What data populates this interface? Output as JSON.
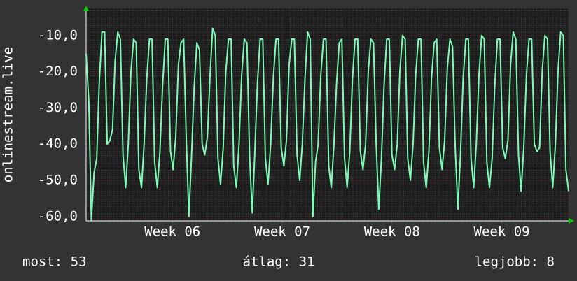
{
  "chart_data": {
    "type": "line",
    "y_label": "onlinestream.live",
    "series": [
      {
        "name": "onlinestream.live",
        "color": "#7dfbb8",
        "values": [
          -15,
          -28,
          -61,
          -48,
          -44,
          -23,
          -9,
          -9,
          -40,
          -39,
          -36,
          -17,
          -9,
          -11,
          -43,
          -52,
          -40,
          -20,
          -11,
          -12,
          -47,
          -52,
          -40,
          -22,
          -11,
          -11,
          -45,
          -52,
          -42,
          -24,
          -11,
          -11,
          -42,
          -47,
          -38,
          -18,
          -12,
          -11,
          -39,
          -60,
          -43,
          -24,
          -12,
          -14,
          -40,
          -43,
          -38,
          -21,
          -8,
          -10,
          -44,
          -51,
          -41,
          -20,
          -11,
          -11,
          -46,
          -52,
          -40,
          -21,
          -11,
          -12,
          -43,
          -59,
          -42,
          -23,
          -11,
          -11,
          -44,
          -51,
          -40,
          -22,
          -11,
          -11,
          -41,
          -46,
          -39,
          -18,
          -11,
          -11,
          -43,
          -50,
          -40,
          -22,
          -9,
          -11,
          -60,
          -45,
          -40,
          -21,
          -11,
          -11,
          -46,
          -52,
          -40,
          -23,
          -12,
          -11,
          -44,
          -52,
          -42,
          -22,
          -11,
          -11,
          -42,
          -47,
          -40,
          -20,
          -11,
          -12,
          -40,
          -58,
          -44,
          -24,
          -11,
          -11,
          -43,
          -47,
          -40,
          -20,
          -10,
          -11,
          -44,
          -50,
          -40,
          -21,
          -11,
          -11,
          -45,
          -52,
          -42,
          -22,
          -12,
          -11,
          -41,
          -47,
          -39,
          -19,
          -11,
          -13,
          -41,
          -58,
          -43,
          -22,
          -11,
          -11,
          -44,
          -52,
          -40,
          -21,
          -10,
          -11,
          -45,
          -52,
          -44,
          -24,
          -11,
          -11,
          -41,
          -44,
          -39,
          -18,
          -9,
          -11,
          -43,
          -53,
          -41,
          -21,
          -11,
          -11,
          -40,
          -42,
          -41,
          -20,
          -10,
          -11,
          -42,
          -52,
          -40,
          -20,
          -9,
          -10,
          -47,
          -53
        ]
      }
    ],
    "xlim": [
      0,
      30.76
    ],
    "xticks": [
      {
        "value": 5.5,
        "label": "Week 06"
      },
      {
        "value": 12.5,
        "label": "Week 07"
      },
      {
        "value": 19.5,
        "label": "Week 08"
      },
      {
        "value": 26.5,
        "label": "Week 09"
      }
    ],
    "ylim": [
      -61.2,
      -2.5
    ],
    "yticks": [
      {
        "value": -10,
        "label": "-10,0"
      },
      {
        "value": -20,
        "label": "-20,0"
      },
      {
        "value": -30,
        "label": "-30,0"
      },
      {
        "value": -40,
        "label": "-40,0"
      },
      {
        "value": -50,
        "label": "-50,0"
      },
      {
        "value": -60,
        "label": "-60,0"
      }
    ],
    "grid": true,
    "annotations": [
      "most: 53",
      "átlag: 31",
      "legjobb: 8"
    ]
  }
}
